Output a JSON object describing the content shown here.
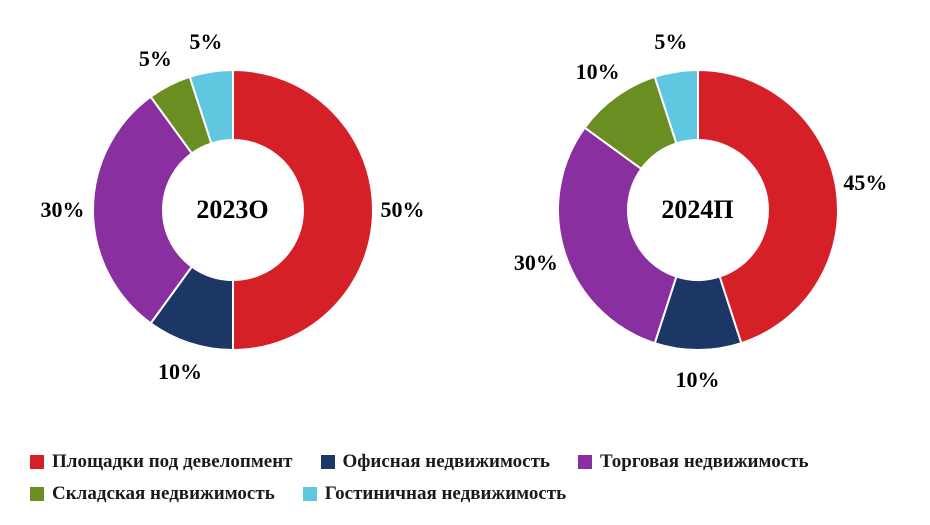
{
  "chart": {
    "type": "donut",
    "background_color": "#ffffff",
    "label_fontsize": 22,
    "center_label_fontsize": 26,
    "legend_fontsize": 19,
    "donut_outer_radius": 140,
    "donut_inner_radius": 70,
    "charts": [
      {
        "center_label": "2023О",
        "slices": [
          {
            "value": 50,
            "label": "50%",
            "color": "#d62028"
          },
          {
            "value": 10,
            "label": "10%",
            "color": "#1c3766"
          },
          {
            "value": 30,
            "label": "30%",
            "color": "#8a2fa0"
          },
          {
            "value": 5,
            "label": "5%",
            "color": "#6b8e23"
          },
          {
            "value": 5,
            "label": "5%",
            "color": "#5fc7e0"
          }
        ]
      },
      {
        "center_label": "2024П",
        "slices": [
          {
            "value": 45,
            "label": "45%",
            "color": "#d62028"
          },
          {
            "value": 10,
            "label": "10%",
            "color": "#1c3766"
          },
          {
            "value": 30,
            "label": "30%",
            "color": "#8a2fa0"
          },
          {
            "value": 10,
            "label": "10%",
            "color": "#6b8e23"
          },
          {
            "value": 5,
            "label": "5%",
            "color": "#5fc7e0"
          }
        ]
      }
    ],
    "legend": [
      {
        "label": "Площадки под девелопмент",
        "color": "#d62028"
      },
      {
        "label": "Офисная недвижимость",
        "color": "#1c3766"
      },
      {
        "label": "Торговая недвижимость",
        "color": "#8a2fa0"
      },
      {
        "label": "Складская недвижимость",
        "color": "#6b8e23"
      },
      {
        "label": "Гостиничная недвижимость",
        "color": "#5fc7e0"
      }
    ]
  }
}
